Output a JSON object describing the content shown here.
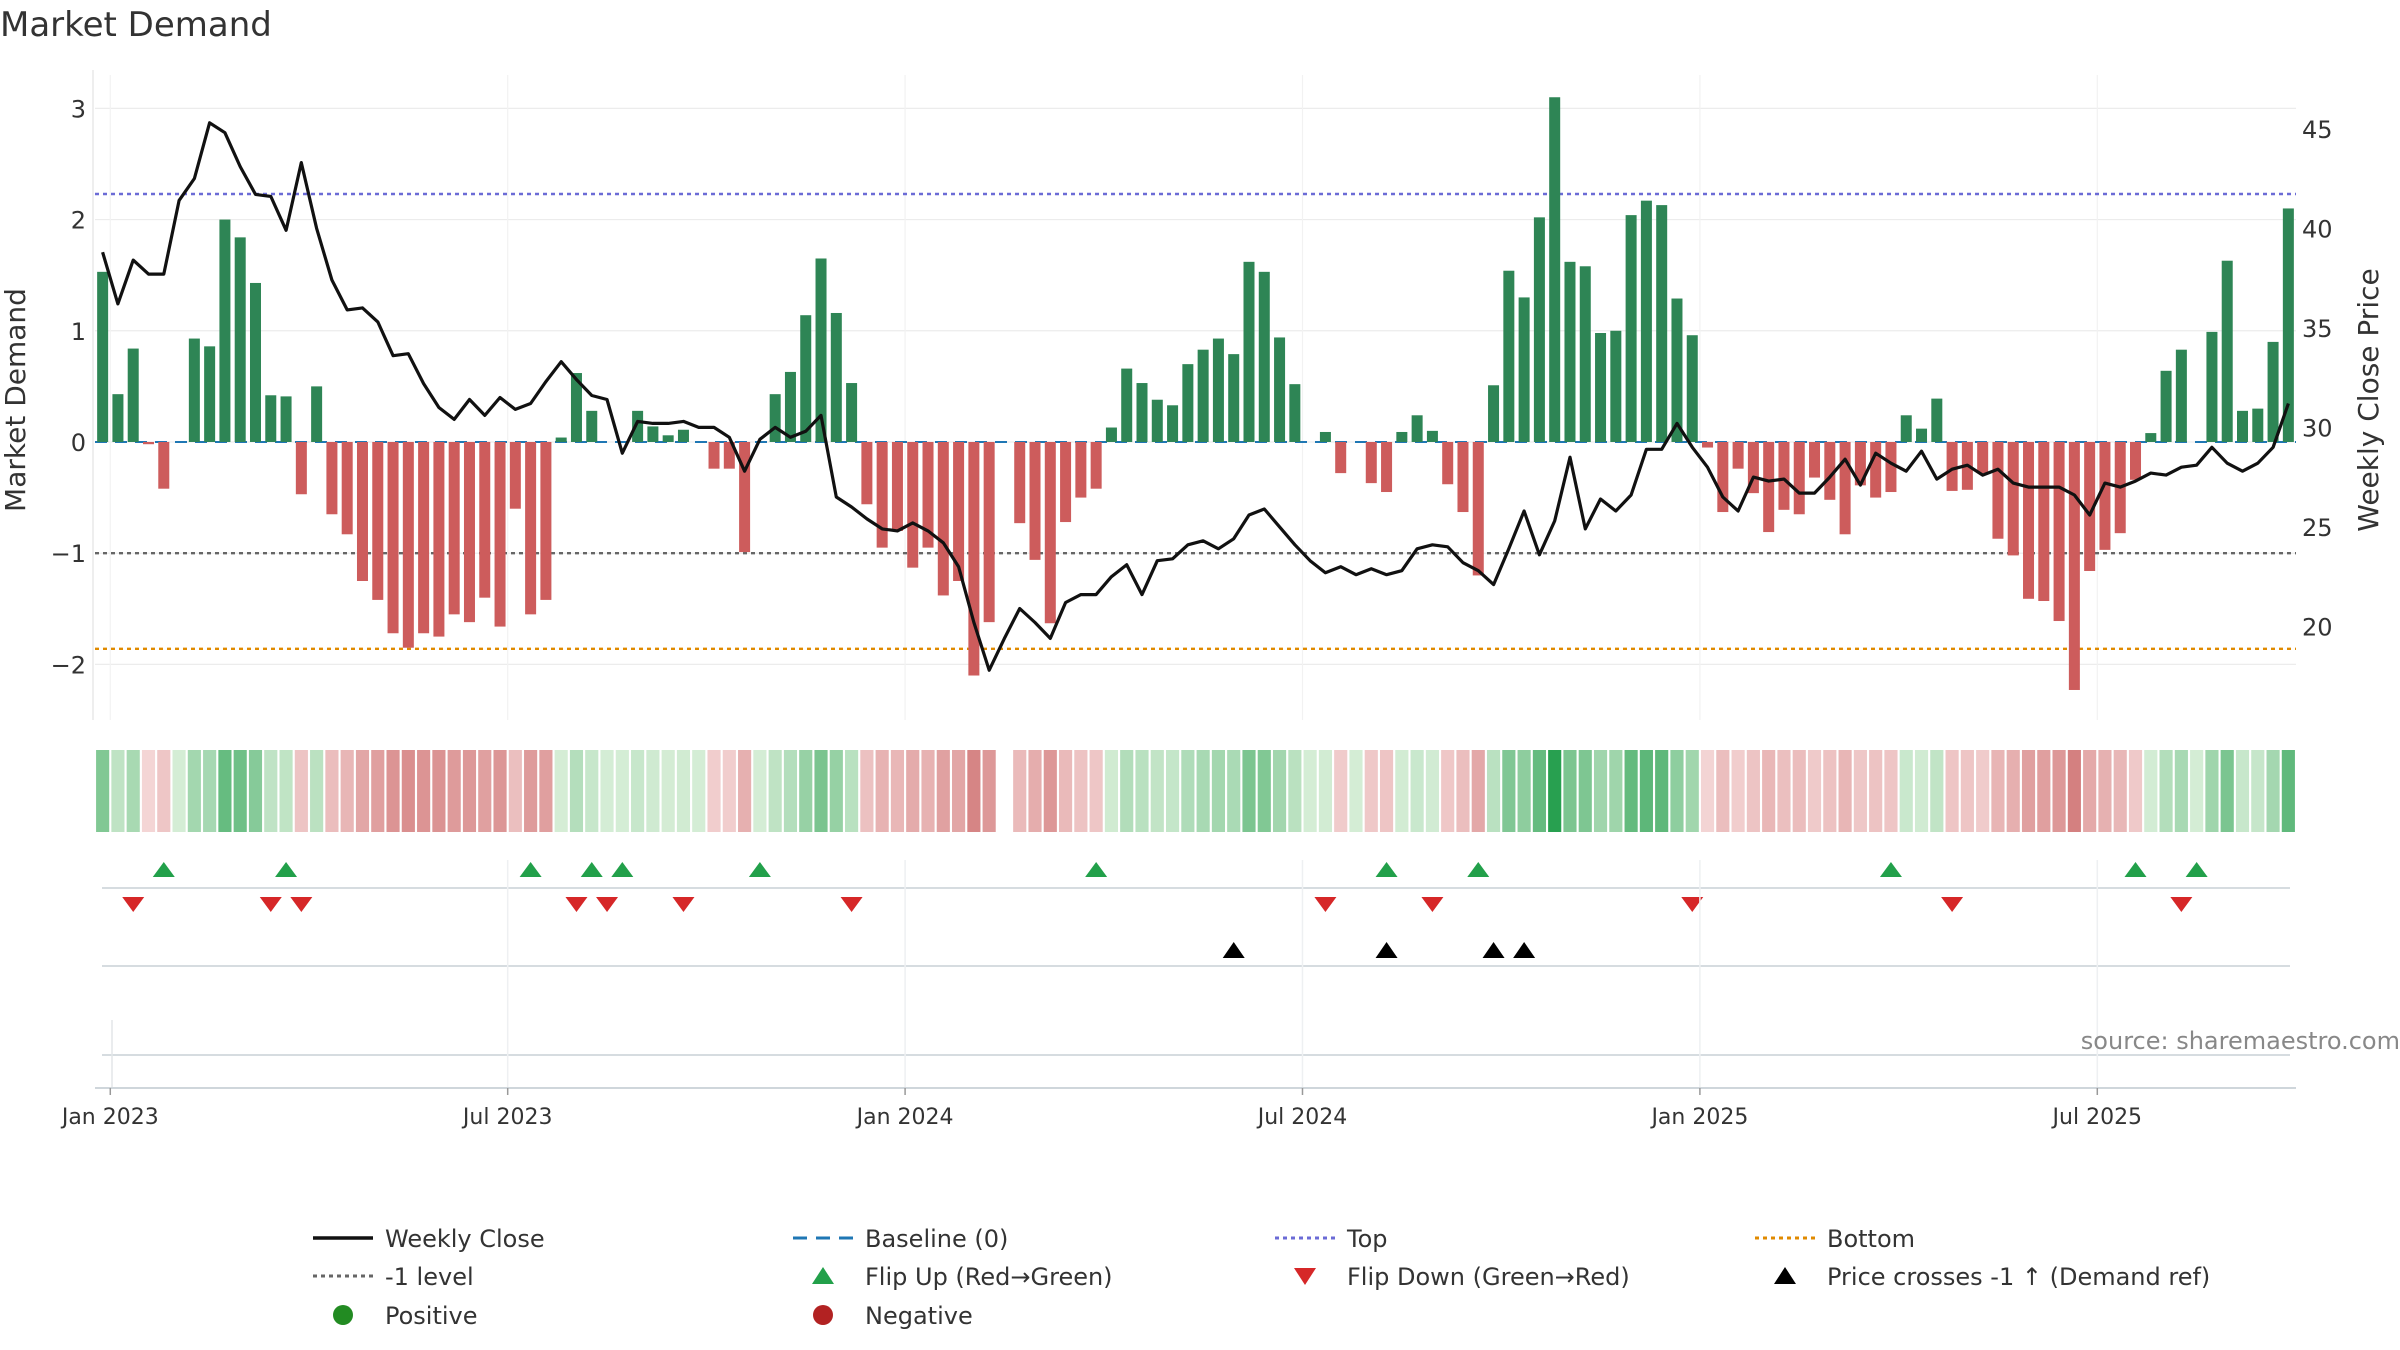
{
  "chart_data": {
    "type": "bar",
    "title": "Market Demand",
    "ylabel_left": "Market Demand",
    "ylabel_right": "Weekly Close Price",
    "ylim_left": [
      -2.5,
      3.3
    ],
    "ylim_right": [
      15.3,
      47.7
    ],
    "yticks_left": [
      3,
      2,
      1,
      0,
      -1,
      -2
    ],
    "yticks_left_labels": [
      "3",
      "2",
      "1",
      "0",
      "−1",
      "−2"
    ],
    "yticks_right": [
      45,
      40,
      35,
      30,
      25,
      20
    ],
    "yticks_right_labels": [
      "45",
      "40",
      "35",
      "30",
      "25",
      "20"
    ],
    "x_tick_labels": [
      "Jan 2023",
      "Jul 2023",
      "Jan 2024",
      "Jul 2024",
      "Jan 2025",
      "Jul 2025"
    ],
    "x_tick_weeks": [
      0.5,
      26.5,
      52.5,
      78.5,
      104.5,
      130.5
    ],
    "reference_lines": {
      "top": 2.23,
      "minus_one": -1.0,
      "bottom": -1.86
    },
    "series": [
      {
        "name": "Market Demand",
        "values": [
          1.53,
          0.43,
          0.84,
          -0.02,
          -0.42,
          0,
          0.93,
          0.86,
          2.0,
          1.84,
          1.43,
          0.42,
          0.41,
          -0.47,
          0.5,
          -0.65,
          -0.83,
          -1.25,
          -1.42,
          -1.72,
          -1.85,
          -1.72,
          -1.75,
          -1.55,
          -1.62,
          -1.4,
          -1.66,
          -0.6,
          -1.55,
          -1.42,
          0.04,
          0.62,
          0.28,
          0,
          0,
          0.28,
          0.14,
          0.06,
          0.11,
          0,
          -0.24,
          -0.24,
          -0.99,
          0,
          0.43,
          0.63,
          1.14,
          1.65,
          1.16,
          0.53,
          -0.56,
          -0.95,
          -0.8,
          -1.13,
          -0.95,
          -1.38,
          -1.25,
          -2.1,
          -1.62,
          0,
          -0.73,
          -1.06,
          -1.63,
          -0.72,
          -0.5,
          -0.42,
          0.13,
          0.66,
          0.53,
          0.38,
          0.33,
          0.7,
          0.83,
          0.93,
          0.79,
          1.62,
          1.53,
          0.94,
          0.52,
          0,
          0.09,
          -0.28,
          0,
          -0.37,
          -0.45,
          0.09,
          0.24,
          0.1,
          -0.38,
          -0.63,
          -1.2,
          0.51,
          1.54,
          1.3,
          2.02,
          3.1,
          1.62,
          1.58,
          0.98,
          1.0,
          2.04,
          2.17,
          2.13,
          1.29,
          0.96,
          -0.05,
          -0.63,
          -0.24,
          -0.46,
          -0.81,
          -0.61,
          -0.65,
          -0.32,
          -0.52,
          -0.83,
          -0.39,
          -0.5,
          -0.45,
          0.24,
          0.12,
          0.39,
          -0.44,
          -0.43,
          -0.28,
          -0.87,
          -1.02,
          -1.41,
          -1.43,
          -1.61,
          -2.23,
          -1.16,
          -0.97,
          -0.82,
          -0.34,
          0.08,
          0.64,
          0.83,
          0,
          0.99,
          1.63,
          0.28,
          0.3,
          0.9,
          2.1
        ]
      },
      {
        "name": "Weekly Close",
        "values": [
          38.8,
          36.2,
          38.4,
          37.7,
          37.7,
          41.4,
          42.5,
          45.3,
          44.8,
          43.1,
          41.7,
          41.6,
          39.9,
          43.3,
          40.0,
          37.4,
          35.9,
          36.0,
          35.3,
          33.6,
          33.7,
          32.2,
          31.0,
          30.4,
          31.4,
          30.6,
          31.5,
          30.9,
          31.2,
          32.3,
          33.3,
          32.4,
          31.6,
          31.4,
          28.7,
          30.3,
          30.2,
          30.2,
          30.3,
          30.0,
          30.0,
          29.5,
          27.8,
          29.4,
          30.0,
          29.5,
          29.8,
          30.6,
          26.5,
          26.0,
          25.4,
          24.9,
          24.8,
          25.2,
          24.8,
          24.2,
          23.0,
          20.2,
          17.8,
          19.4,
          20.9,
          20.2,
          19.4,
          21.2,
          21.6,
          21.6,
          22.5,
          23.1,
          21.6,
          23.3,
          23.4,
          24.1,
          24.3,
          23.9,
          24.4,
          25.6,
          25.9,
          25.0,
          24.1,
          23.3,
          22.7,
          23.0,
          22.6,
          22.9,
          22.6,
          22.8,
          23.9,
          24.1,
          24.0,
          23.2,
          22.8,
          22.1,
          23.9,
          25.8,
          23.6,
          25.3,
          28.5,
          24.9,
          26.4,
          25.8,
          26.6,
          28.9,
          28.9,
          30.2,
          29.0,
          28.0,
          26.5,
          25.8,
          27.5,
          27.3,
          27.4,
          26.7,
          26.7,
          27.5,
          28.4,
          27.1,
          28.7,
          28.2,
          27.8,
          28.8,
          27.4,
          27.9,
          28.1,
          27.6,
          27.9,
          27.2,
          27.0,
          27.0,
          27.0,
          26.6,
          25.6,
          27.2,
          27.0,
          27.3,
          27.7,
          27.6,
          28.0,
          28.1,
          29.0,
          28.2,
          27.8,
          28.2,
          29.0,
          31.2
        ]
      }
    ],
    "flip_up_weeks": [
      4,
      12,
      28,
      32,
      34,
      43,
      65,
      84,
      90,
      117,
      133,
      137
    ],
    "flip_down_weeks": [
      2,
      11,
      13,
      31,
      33,
      38,
      49,
      80,
      87,
      104,
      121,
      136
    ],
    "price_cross_weeks": [
      74,
      84,
      91,
      93
    ],
    "legend": [
      "Weekly Close",
      "Baseline (0)",
      "Top",
      "Bottom",
      "-1 level",
      "Flip Up (Red→Green)",
      "Flip Down (Green→Red)",
      "Price crosses -1 ↑ (Demand ref)",
      "Positive",
      "Negative"
    ],
    "source_text": "source: sharemaestro.com"
  },
  "colors": {
    "positive": "#2e8555",
    "negative": "#cd5c5c",
    "price": "#111111",
    "baseline": "#1f77b4",
    "top": "#6b6bd6",
    "bottom": "#e08a00",
    "minus_one": "#666666",
    "flip_up": "#22a04a",
    "flip_down": "#d62728",
    "cross": "#000000",
    "legend_positive": "#228b22",
    "legend_negative": "#b22222"
  }
}
